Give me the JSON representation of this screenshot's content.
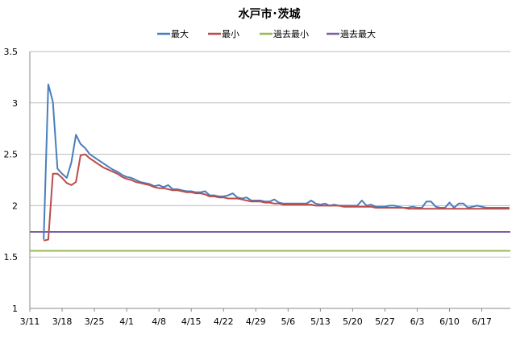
{
  "chart_data": {
    "type": "line",
    "title": "水戸市･茨城",
    "xlabel": "",
    "ylabel": "",
    "ylim": [
      1,
      3.5
    ],
    "yticks": [
      "1",
      "1.5",
      "2",
      "2.5",
      "3",
      "3.5"
    ],
    "xticks": [
      "3/11",
      "3/18",
      "3/25",
      "4/1",
      "4/8",
      "4/15",
      "4/22",
      "4/29",
      "5/6",
      "5/13",
      "5/20",
      "5/27",
      "6/3",
      "6/10",
      "6/17"
    ],
    "grid": true,
    "legend": "top",
    "x": [
      "3/14",
      "3/15",
      "3/16",
      "3/17",
      "3/18",
      "3/19",
      "3/20",
      "3/21",
      "3/22",
      "3/23",
      "3/24",
      "3/25",
      "3/26",
      "3/27",
      "3/28",
      "3/29",
      "3/30",
      "3/31",
      "4/1",
      "4/2",
      "4/3",
      "4/4",
      "4/5",
      "4/6",
      "4/7",
      "4/8",
      "4/9",
      "4/10",
      "4/11",
      "4/12",
      "4/13",
      "4/14",
      "4/15",
      "4/16",
      "4/17",
      "4/18",
      "4/19",
      "4/20",
      "4/21",
      "4/22",
      "4/23",
      "4/24",
      "4/25",
      "4/26",
      "4/27",
      "4/28",
      "4/29",
      "4/30",
      "5/1",
      "5/2",
      "5/3",
      "5/4",
      "5/5",
      "5/6",
      "5/7",
      "5/8",
      "5/9",
      "5/10",
      "5/11",
      "5/12",
      "5/13",
      "5/14",
      "5/15",
      "5/16",
      "5/17",
      "5/18",
      "5/19",
      "5/20",
      "5/21",
      "5/22",
      "5/23",
      "5/24",
      "5/25",
      "5/26",
      "5/27",
      "5/28",
      "5/29",
      "5/30",
      "5/31",
      "6/1",
      "6/2",
      "6/3",
      "6/4",
      "6/5",
      "6/6",
      "6/7",
      "6/8",
      "6/9",
      "6/10",
      "6/11",
      "6/12",
      "6/13",
      "6/14",
      "6/15",
      "6/16",
      "6/17",
      "6/18",
      "6/19",
      "6/20",
      "6/21",
      "6/22",
      "6/23"
    ],
    "series": [
      {
        "name": "最大",
        "color": "#4a7ebb",
        "values": [
          1.67,
          3.18,
          3.01,
          2.36,
          2.31,
          2.27,
          2.42,
          2.69,
          2.6,
          2.56,
          2.5,
          2.47,
          2.44,
          2.41,
          2.38,
          2.35,
          2.33,
          2.3,
          2.28,
          2.27,
          2.25,
          2.23,
          2.22,
          2.21,
          2.19,
          2.2,
          2.18,
          2.2,
          2.16,
          2.16,
          2.15,
          2.14,
          2.14,
          2.13,
          2.13,
          2.14,
          2.1,
          2.1,
          2.09,
          2.09,
          2.1,
          2.12,
          2.08,
          2.07,
          2.08,
          2.05,
          2.05,
          2.05,
          2.04,
          2.04,
          2.06,
          2.03,
          2.02,
          2.02,
          2.02,
          2.02,
          2.02,
          2.02,
          2.05,
          2.02,
          2.01,
          2.02,
          2.0,
          2.01,
          2.0,
          2.0,
          2.0,
          2.0,
          2.0,
          2.05,
          2.0,
          2.01,
          1.99,
          1.99,
          1.99,
          2.0,
          2.0,
          1.99,
          1.98,
          1.98,
          1.99,
          1.98,
          1.98,
          2.04,
          2.04,
          1.99,
          1.98,
          1.98,
          2.03,
          1.98,
          2.02,
          2.02,
          1.98,
          1.99,
          2.0,
          1.99,
          1.98,
          1.98,
          1.98,
          1.98,
          1.98,
          1.98
        ]
      },
      {
        "name": "最小",
        "color": "#be4b48",
        "values": [
          1.66,
          1.67,
          2.31,
          2.31,
          2.27,
          2.22,
          2.2,
          2.23,
          2.49,
          2.5,
          2.46,
          2.43,
          2.4,
          2.37,
          2.35,
          2.33,
          2.31,
          2.28,
          2.26,
          2.25,
          2.23,
          2.22,
          2.21,
          2.2,
          2.18,
          2.17,
          2.17,
          2.16,
          2.15,
          2.15,
          2.14,
          2.13,
          2.13,
          2.12,
          2.12,
          2.11,
          2.09,
          2.09,
          2.08,
          2.08,
          2.07,
          2.07,
          2.07,
          2.06,
          2.05,
          2.04,
          2.04,
          2.04,
          2.03,
          2.03,
          2.02,
          2.02,
          2.01,
          2.01,
          2.01,
          2.01,
          2.01,
          2.01,
          2.01,
          2.0,
          2.0,
          2.0,
          2.0,
          2.0,
          2.0,
          1.99,
          1.99,
          1.99,
          1.99,
          1.99,
          1.99,
          1.99,
          1.98,
          1.98,
          1.98,
          1.98,
          1.98,
          1.98,
          1.98,
          1.97,
          1.97,
          1.97,
          1.97,
          1.97,
          1.97,
          1.97,
          1.97,
          1.97,
          1.97,
          1.97,
          1.97,
          1.97,
          1.97,
          1.97,
          1.97,
          1.97,
          1.97,
          1.97,
          1.97,
          1.97,
          1.97,
          1.97
        ]
      },
      {
        "name": "過去最小",
        "color": "#98b954",
        "constant": 1.56
      },
      {
        "name": "過去最大",
        "color": "#7d60a0",
        "constant": 1.745
      }
    ]
  }
}
